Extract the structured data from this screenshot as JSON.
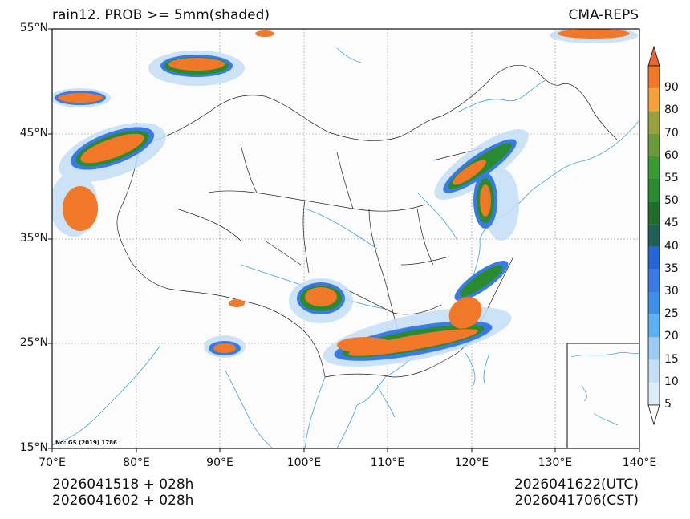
{
  "title": {
    "left": "rain12. PROB >= 5mm(shaded)",
    "right": "CMA-REPS"
  },
  "lat_labels": [
    "55°N",
    "45°N",
    "35°N",
    "25°N",
    "15°N"
  ],
  "lon_labels": [
    "70°E",
    "80°E",
    "90°E",
    "100°E",
    "110°E",
    "120°E",
    "130°E",
    "140°E"
  ],
  "colorbar": {
    "levels": [
      "5",
      "10",
      "15",
      "20",
      "25",
      "30",
      "35",
      "40",
      "45",
      "50",
      "55",
      "60",
      "70",
      "80",
      "90"
    ],
    "colors": [
      "#ddeefa",
      "#c3def6",
      "#9acbf2",
      "#5fb0f0",
      "#3d8fe8",
      "#3a7ae6",
      "#2464d6",
      "#1f5f55",
      "#1e6e2a",
      "#2a8a2e",
      "#3a9a34",
      "#6a9a3a",
      "#9aa040",
      "#f5a03a",
      "#f07828"
    ],
    "top_arrow_color": "#e8643a",
    "bottom_arrow_color": "#ffffff"
  },
  "bottom": {
    "left_line1": "2026041518  +  028h",
    "left_line2": "2026041602  +  028h",
    "right_line1": "2026041622(UTC)",
    "right_line2": "2026041706(CST)"
  },
  "approval_note": "No: GS (2019) 1786",
  "colors": {
    "precip_core": "#f07828",
    "precip_mid": "#2a8a2e",
    "precip_edge": "#3a7ae6",
    "precip_light": "#c3def6",
    "border": "#222222",
    "water": "#3aa6d8"
  }
}
